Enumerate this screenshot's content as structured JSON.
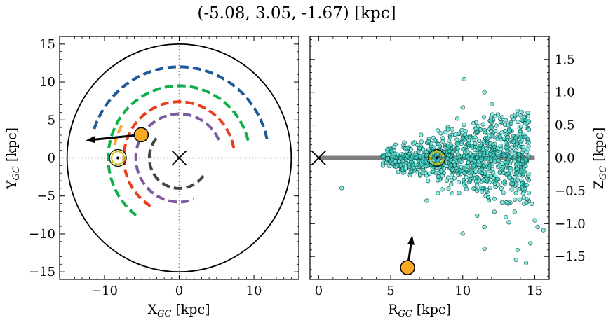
{
  "chart_data": [
    {
      "type": "line",
      "title": "(-5.08, 3.05, -1.67) [kpc]",
      "xlabel": "X",
      "xlabel_sub": "GC",
      "xlabel_unit": " [kpc]",
      "ylabel": "Y",
      "ylabel_sub": "GC",
      "ylabel_unit": " [kpc]",
      "xlim": [
        -16,
        16
      ],
      "ylim": [
        -16,
        16
      ],
      "xticks": [
        -10,
        0,
        10
      ],
      "yticks": [
        -15,
        -10,
        -5,
        0,
        5,
        10,
        15
      ],
      "xtick_labels": [
        "−10",
        "0",
        "10"
      ],
      "ytick_labels": [
        "−15",
        "−10",
        "−5",
        "0",
        "5",
        "10",
        "15"
      ],
      "grid": false,
      "galactic_boundary": {
        "center": [
          0,
          0
        ],
        "radius": 15,
        "color": "#000000"
      },
      "crosshair_lines": {
        "x": 0,
        "y": 0,
        "style": "dotted",
        "color": "#888888"
      },
      "galactic_center_marker": {
        "x": 0,
        "y": 0,
        "symbol": "x"
      },
      "sun": {
        "x": -8.2,
        "y": 0
      },
      "object": {
        "x": -5.08,
        "y": 3.05,
        "color": "#F9A825"
      },
      "velocity_arrow": {
        "from": [
          -5.08,
          3.05
        ],
        "to": [
          -12.5,
          2.3
        ]
      },
      "series": [
        {
          "type": "arc",
          "r": 12.0,
          "start_deg": 12,
          "end_deg": 162,
          "color": "#1F5A96"
        },
        {
          "type": "arc",
          "r": 9.5,
          "start_deg": 14,
          "end_deg": 234,
          "color": "#11B04A"
        },
        {
          "type": "arc",
          "r": 7.4,
          "start_deg": 10,
          "end_deg": 242,
          "color": "#E8401C"
        },
        {
          "type": "arc",
          "r": 5.8,
          "start_deg": 24,
          "end_deg": 290,
          "color": "#7E5A9E"
        },
        {
          "type": "arc",
          "r": 4.0,
          "start_deg": 140,
          "end_deg": 330,
          "color": "#444444"
        },
        {
          "type": "arc",
          "r": 8.8,
          "start_deg": 151,
          "end_deg": 169,
          "color": "#F9A825"
        }
      ]
    },
    {
      "type": "scatter",
      "xlabel": "R",
      "xlabel_sub": "GC",
      "xlabel_unit": " [kpc]",
      "ylabel": "Z",
      "ylabel_sub": "GC",
      "ylabel_unit": " [kpc]",
      "xlim": [
        -0.6,
        16
      ],
      "ylim": [
        -1.85,
        1.85
      ],
      "xticks": [
        0,
        5,
        10,
        15
      ],
      "yticks": [
        -1.5,
        -1.0,
        -0.5,
        0.0,
        0.5,
        1.0,
        1.5
      ],
      "xtick_labels": [
        "0",
        "5",
        "10",
        "15"
      ],
      "ytick_labels": [
        "−1.5",
        "−1.0",
        "−0.5",
        "0.0",
        "0.5",
        "1.0",
        "1.5"
      ],
      "grid": false,
      "disk_line": {
        "y": 0,
        "x_from": 0,
        "x_to": 15,
        "color": "#7f7f7f"
      },
      "galactic_center_marker": {
        "x": 0,
        "y": 0,
        "symbol": "x"
      },
      "sun": {
        "x": 8.2,
        "y": 0
      },
      "object": {
        "x": 6.17,
        "y": -1.67,
        "color": "#F9A825"
      },
      "velocity_arrow": {
        "from": [
          6.17,
          -1.67
        ],
        "to": [
          6.5,
          -1.18
        ]
      },
      "star_color": "#40E0D0",
      "stars": [
        {
          "x": 1.6,
          "y": -0.46
        },
        {
          "x": 7.5,
          "y": -0.65
        },
        {
          "x": 10.1,
          "y": 1.2
        },
        {
          "x": 11.5,
          "y": 1.0
        },
        {
          "x": 10.0,
          "y": 0.77
        },
        {
          "x": 12.0,
          "y": 0.82
        },
        {
          "x": 13.8,
          "y": 0.72
        },
        {
          "x": 11.0,
          "y": -0.88
        },
        {
          "x": 12.2,
          "y": -0.82
        },
        {
          "x": 13.6,
          "y": -0.82
        },
        {
          "x": 14.8,
          "y": -0.7
        },
        {
          "x": 15.0,
          "y": -0.95
        },
        {
          "x": 15.2,
          "y": -1.05
        },
        {
          "x": 15.6,
          "y": -1.1
        },
        {
          "x": 14.7,
          "y": -1.3
        },
        {
          "x": 14.4,
          "y": -1.6
        },
        {
          "x": 13.8,
          "y": -1.4
        },
        {
          "x": 13.7,
          "y": -1.55
        },
        {
          "x": 10.0,
          "y": -1.15
        },
        {
          "x": 11.5,
          "y": -1.05
        },
        {
          "x": 11.5,
          "y": -1.38
        },
        {
          "x": 13.2,
          "y": -0.98
        },
        {
          "x": 13.0,
          "y": -0.9
        },
        {
          "x": 9.2,
          "y": -0.4
        },
        {
          "x": 7.6,
          "y": -0.35
        }
      ],
      "cloud": {
        "x_min": 4.4,
        "x_max": 14.6,
        "count": 900,
        "seed": 7
      }
    }
  ]
}
